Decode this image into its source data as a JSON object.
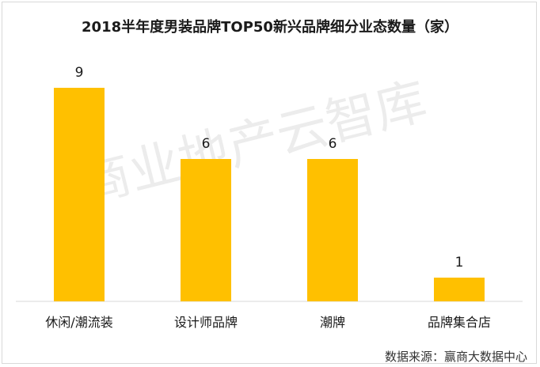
{
  "chart_data": {
    "type": "bar",
    "title": "2018半年度男装品牌TOP50新兴品牌细分业态数量（家）",
    "categories": [
      "休闲/潮流装",
      "设计师品牌",
      "潮牌",
      "品牌集合店"
    ],
    "values": [
      9,
      6,
      6,
      1
    ],
    "xlabel": "",
    "ylabel": "",
    "ylim": [
      0,
      10
    ],
    "grid": false,
    "legend": "none",
    "colors": {
      "bar": "#FFC000",
      "axis": "#d9d9d9",
      "text": "#1a1a1a"
    }
  },
  "watermark": "商业地产云智库",
  "source": "数据来源：赢商大数据中心"
}
